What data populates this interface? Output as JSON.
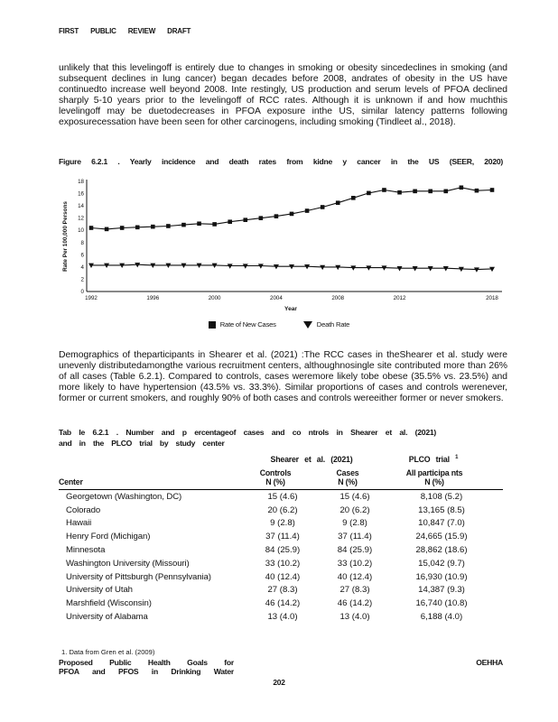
{
  "page": {
    "header": "FIRST PUBLIC REVIEW DRAFT",
    "paragraph1": "unlikely that this levelingoff is entirely due to changes in smoking or obesity sincedeclines in smoking (and subsequent declines in lung cancer) began decades before 2008, andrates of obesity in the US have continuedto increase well beyond 2008. Inte restingly, US production and serum levels of PFOA declined sharply 5-10 years prior to the levelingoff of RCC rates. Although it is unknown if and how muchthis levelingoff may be duetodecreases in PFOA exposure inthe US, similar latency patterns following exposurecessation have been seen for other carcinogens, including smoking (Tindleet al., 2018).",
    "figure_caption": "Figure 6.2.1 . Yearly incidence and death rates from kidne y cancer in the US (SEER, 2020)",
    "paragraph2": "Demographics of theparticipants in Shearer et al. (2021) :The RCC cases in theShearer et al. study were unevenly distributedamongthe various recruitment centers, althoughnosingle site contributed more than 26% of all cases (Table 6.2.1). Compared to controls, cases weremore likely tobe obese (35.5% vs. 23.5%) and more likely to have hypertension (43.5% vs. 33.3%). Similar proportions of cases and controls werenever, former or current smokers, and roughly 90% of both cases and controls wereeither former or never smokers.",
    "table_caption_line1": "Tab le 6.2.1 . Number and p ercentageof cases and co ntrols in Shearer et al. (2021)",
    "table_caption_line2": "and in the PLCO trial by study center",
    "footnote": "1. Data from Gren et al. (2009)",
    "footer_left_line1": "Proposed Public Health Goals for",
    "footer_left_line2": "PFOA and PFOS in Drinking Water",
    "footer_right": "OEHHA",
    "page_number": "202"
  },
  "chart_data": {
    "type": "line",
    "title": "Figure 6.2.1. Yearly incidence and death rates from kidney cancer in the US (SEER, 2020)",
    "xlabel": "Year",
    "ylabel": "Rate Per 100,000 Persons",
    "x": [
      1992,
      1993,
      1994,
      1995,
      1996,
      1997,
      1998,
      1999,
      2000,
      2001,
      2002,
      2003,
      2004,
      2005,
      2006,
      2007,
      2008,
      2009,
      2010,
      2011,
      2012,
      2013,
      2014,
      2015,
      2016,
      2017,
      2018
    ],
    "series": [
      {
        "name": "Rate of New Cases",
        "marker": "square",
        "values": [
          10.4,
          10.2,
          10.4,
          10.5,
          10.6,
          10.7,
          10.9,
          11.1,
          11.0,
          11.4,
          11.7,
          12.0,
          12.3,
          12.7,
          13.2,
          13.8,
          14.5,
          15.3,
          16.1,
          16.6,
          16.2,
          16.4,
          16.4,
          16.4,
          17.0,
          16.5,
          16.6
        ]
      },
      {
        "name": "Death Rate",
        "marker": "triangle-down",
        "values": [
          4.3,
          4.3,
          4.3,
          4.4,
          4.3,
          4.3,
          4.3,
          4.3,
          4.3,
          4.2,
          4.2,
          4.2,
          4.1,
          4.1,
          4.1,
          4.0,
          4.0,
          3.9,
          3.9,
          3.9,
          3.8,
          3.8,
          3.8,
          3.8,
          3.7,
          3.6,
          3.7
        ]
      }
    ],
    "ylim": [
      0,
      18
    ],
    "yticks": [
      0,
      2,
      4,
      6,
      8,
      10,
      12,
      14,
      16,
      18
    ],
    "xtick_labels": [
      "1992",
      "1996",
      "2000",
      "2004",
      "2008",
      "2012",
      "2018"
    ],
    "xtick_years": [
      1992,
      1996,
      2000,
      2004,
      2008,
      2012,
      2018
    ],
    "grid": false,
    "legend_position": "bottom",
    "series_color": "#111111"
  },
  "table": {
    "group_headers": {
      "shearer": "Shearer et al. (2021)",
      "plco": "PLCO trial",
      "plco_sup": "1"
    },
    "col_headers": {
      "center": "Center",
      "controls": "Controls",
      "cases": "Cases",
      "all": "All participa nts",
      "sub": "N (%)"
    },
    "rows": [
      {
        "center": "Georgetown (Washington, DC)",
        "controls": "15 (4.6)",
        "cases": "15 (4.6)",
        "all": "8,108 (5.2)"
      },
      {
        "center": "Colorado",
        "controls": "20 (6.2)",
        "cases": "20 (6.2)",
        "all": "13,165 (8.5)"
      },
      {
        "center": "Hawaii",
        "controls": "9 (2.8)",
        "cases": "9 (2.8)",
        "all": "10,847 (7.0)"
      },
      {
        "center": "Henry Ford (Michigan)",
        "controls": "37 (11.4)",
        "cases": "37 (11.4)",
        "all": "24,665 (15.9)"
      },
      {
        "center": "Minnesota",
        "controls": "84 (25.9)",
        "cases": "84 (25.9)",
        "all": "28,862 (18.6)"
      },
      {
        "center": "Washington University (Missouri)",
        "controls": "33 (10.2)",
        "cases": "33 (10.2)",
        "all": "15,042 (9.7)"
      },
      {
        "center": "University of Pittsburgh (Pennsylvania)",
        "controls": "40 (12.4)",
        "cases": "40 (12.4)",
        "all": "16,930 (10.9)"
      },
      {
        "center": "University of Utah",
        "controls": "27 (8.3)",
        "cases": "27 (8.3)",
        "all": "14,387 (9.3)"
      },
      {
        "center": "Marshfield (Wisconsin)",
        "controls": "46 (14.2)",
        "cases": "46 (14.2)",
        "all": "16,740 (10.8)"
      },
      {
        "center": "University of Alabama",
        "controls": "13 (4.0)",
        "cases": "13 (4.0)",
        "all": "6,188 (4.0)"
      }
    ]
  }
}
